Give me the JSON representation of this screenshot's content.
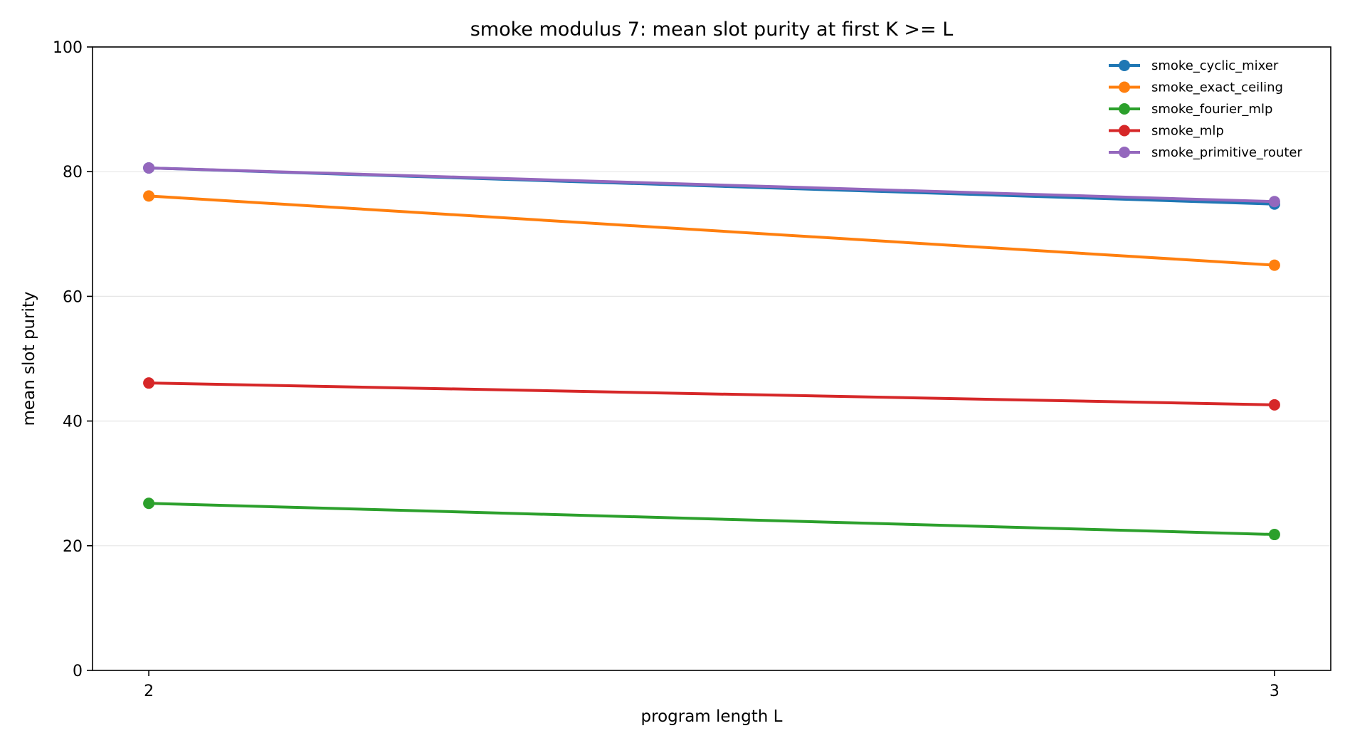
{
  "chart_data": {
    "type": "line",
    "title": "smoke modulus 7: mean slot purity at first K >= L",
    "xlabel": "program length L",
    "ylabel": "mean slot purity",
    "x": [
      2,
      3
    ],
    "xticks": [
      "2",
      "3"
    ],
    "ylim": [
      0,
      100
    ],
    "yticks": [
      0,
      20,
      40,
      60,
      80,
      100
    ],
    "grid": "horizontal",
    "legend_position": "top-right",
    "series": [
      {
        "name": "smoke_cyclic_mixer",
        "color": "#1f77b4",
        "values": [
          80.6,
          74.8
        ]
      },
      {
        "name": "smoke_exact_ceiling",
        "color": "#ff7f0e",
        "values": [
          76.1,
          65.0
        ]
      },
      {
        "name": "smoke_fourier_mlp",
        "color": "#2ca02c",
        "values": [
          26.8,
          21.8
        ]
      },
      {
        "name": "smoke_mlp",
        "color": "#d62728",
        "values": [
          46.1,
          42.6
        ]
      },
      {
        "name": "smoke_primitive_router",
        "color": "#9467bd",
        "values": [
          80.6,
          75.2
        ]
      }
    ]
  }
}
